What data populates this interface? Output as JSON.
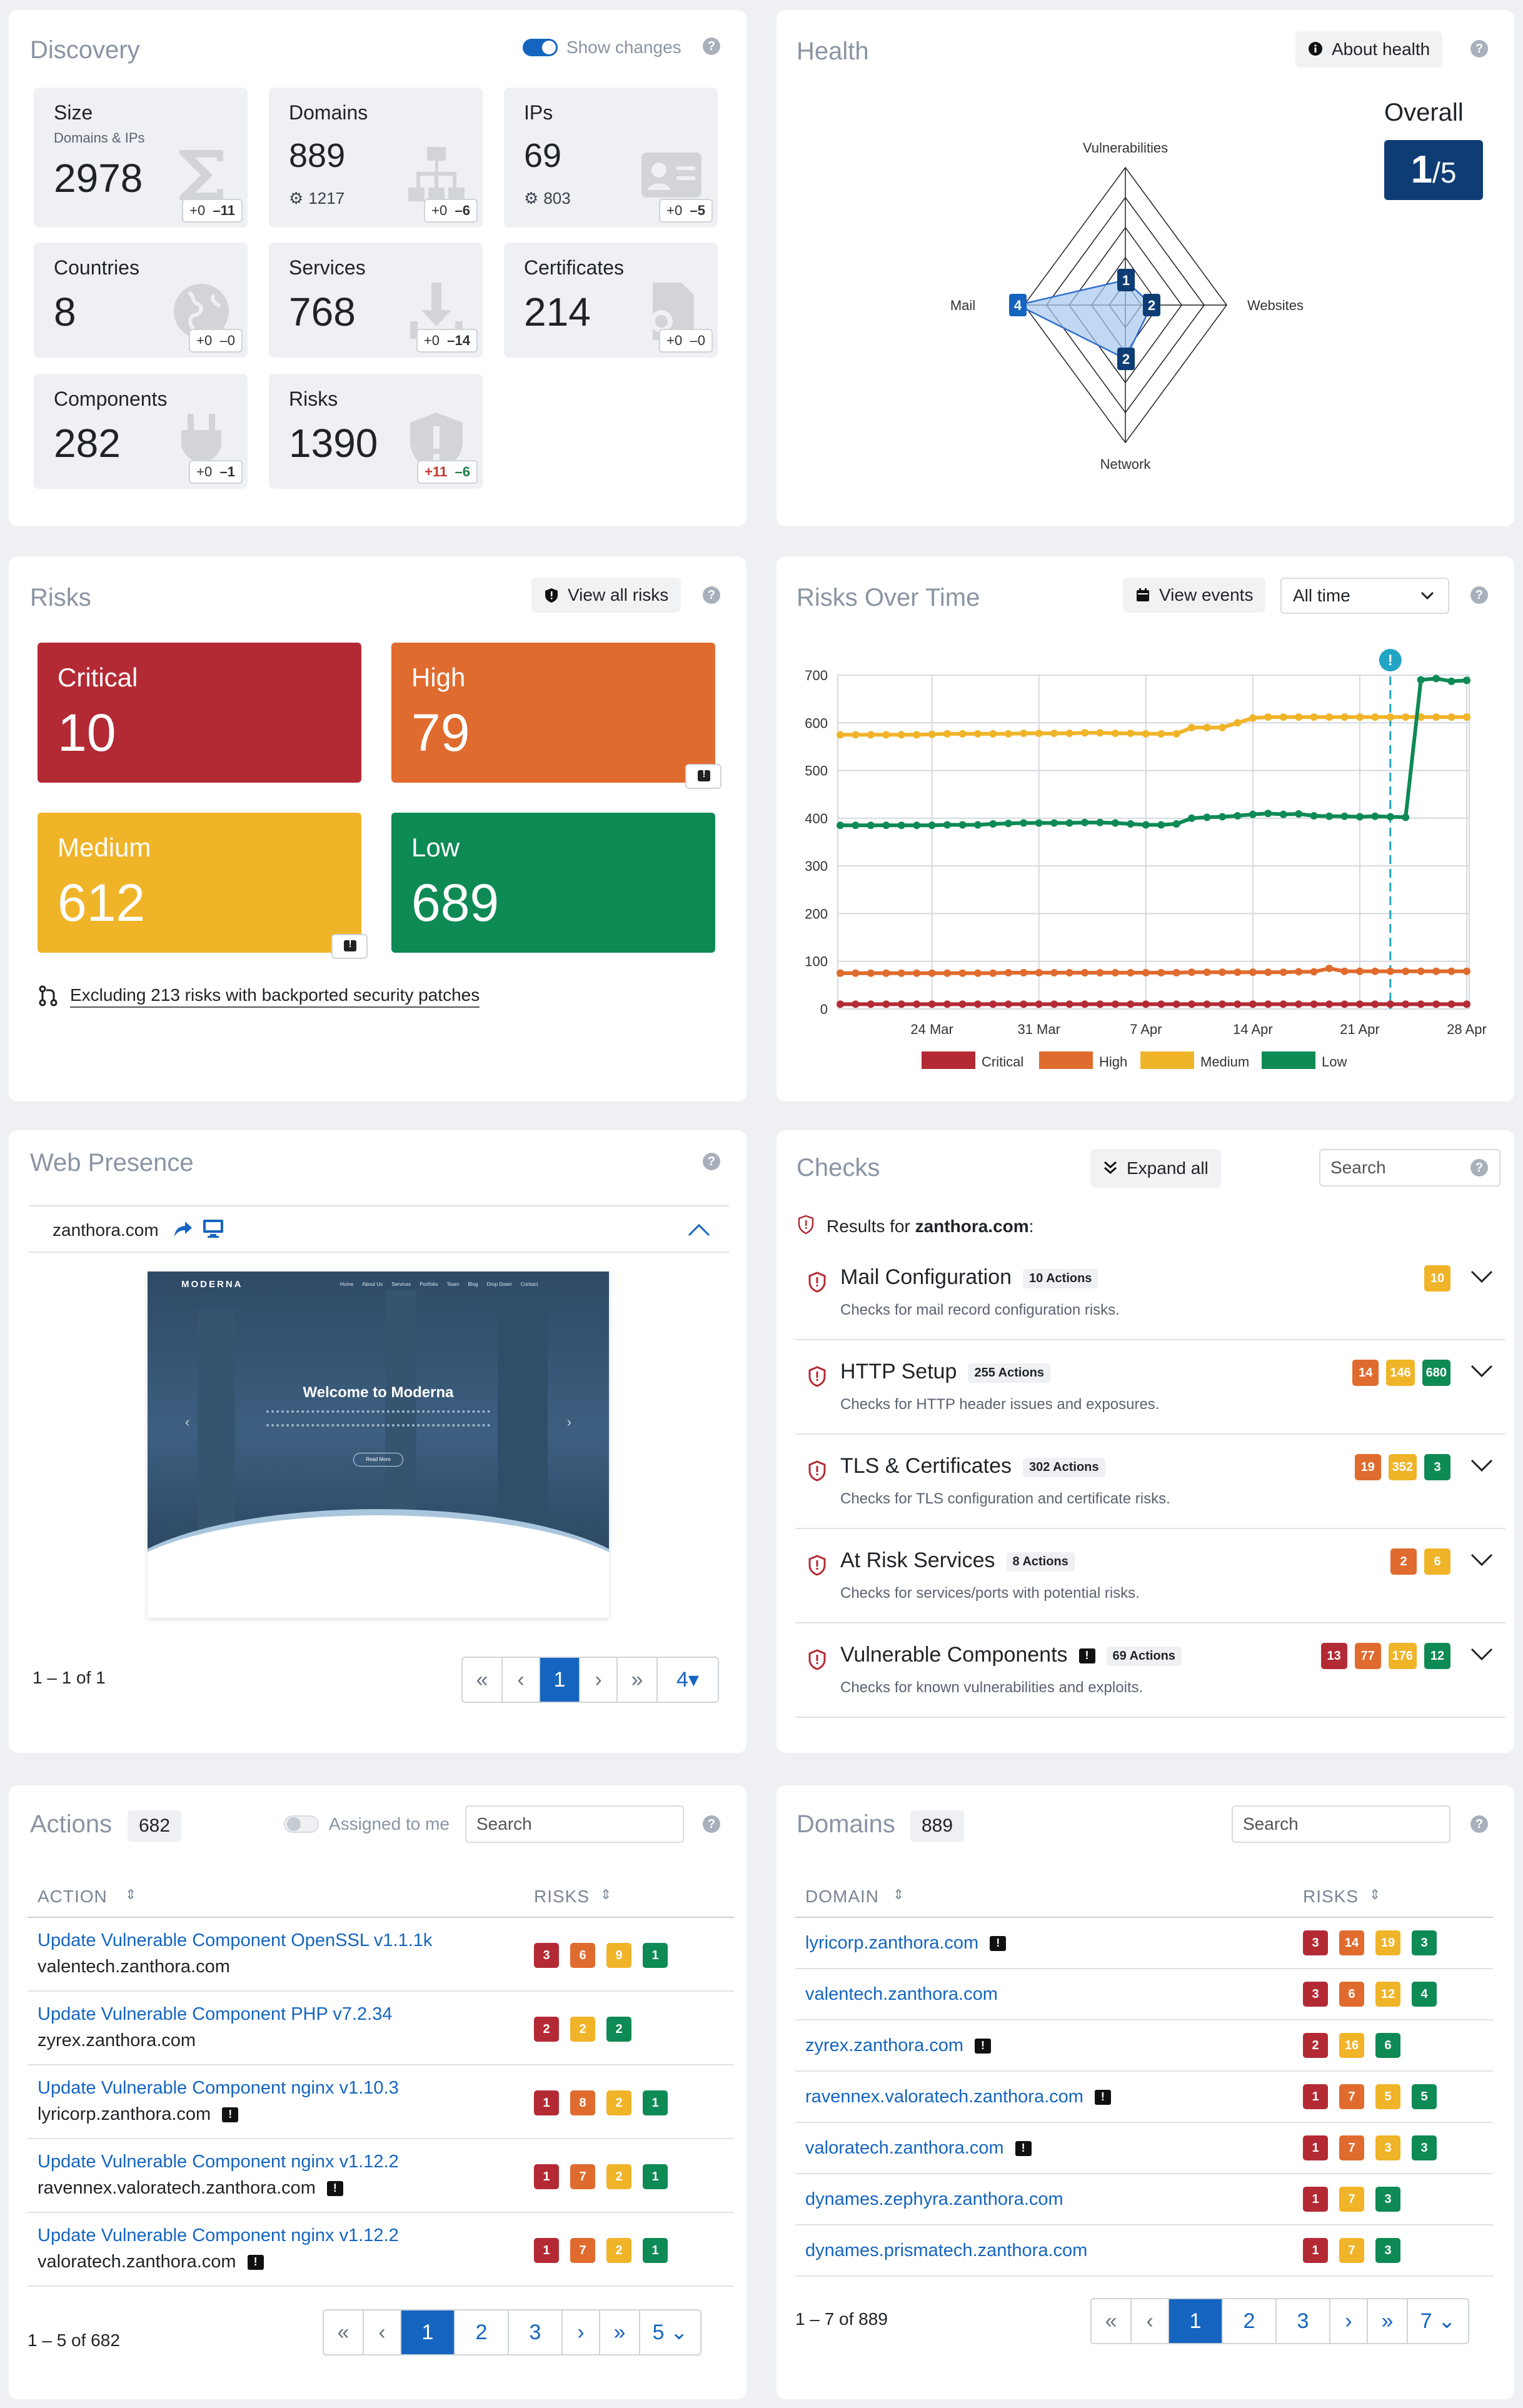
{
  "discovery": {
    "title": "Discovery",
    "show_changes": "Show changes",
    "tiles": [
      {
        "label": "Size",
        "sub": "Domains & IPs",
        "value": "2978",
        "plus": "0",
        "minus": "11"
      },
      {
        "label": "Domains",
        "value": "889",
        "extra": "1217",
        "plus": "0",
        "minus": "6"
      },
      {
        "label": "IPs",
        "value": "69",
        "extra": "803",
        "plus": "0",
        "minus": "5"
      },
      {
        "label": "Countries",
        "value": "8",
        "plus": "0",
        "minus": "0"
      },
      {
        "label": "Services",
        "value": "768",
        "plus": "0",
        "minus": "14"
      },
      {
        "label": "Certificates",
        "value": "214",
        "plus": "0",
        "minus": "0"
      },
      {
        "label": "Components",
        "value": "282",
        "plus": "0",
        "minus": "1"
      },
      {
        "label": "Risks",
        "value": "1390",
        "plus": "11",
        "minus": "6"
      }
    ]
  },
  "health": {
    "title": "Health",
    "about": "About health",
    "overall_label": "Overall",
    "score": "1",
    "max": "/5",
    "axes": [
      {
        "label": "Vulnerabilities",
        "value": "1"
      },
      {
        "label": "Websites",
        "value": "2"
      },
      {
        "label": "Network",
        "value": "2"
      },
      {
        "label": "Mail",
        "value": "4"
      }
    ]
  },
  "risks": {
    "title": "Risks",
    "view_all": "View all risks",
    "cards": [
      {
        "label": "Critical",
        "value": "10"
      },
      {
        "label": "High",
        "value": "79"
      },
      {
        "label": "Medium",
        "value": "612"
      },
      {
        "label": "Low",
        "value": "689"
      }
    ],
    "excluding": "Excluding 213 risks with backported security patches"
  },
  "risks_over_time": {
    "title": "Risks Over Time",
    "view_events": "View events",
    "range": "All time"
  },
  "chart_data": {
    "type": "line",
    "x": [
      "18 Mar",
      "19 Mar",
      "20 Mar",
      "21 Mar",
      "22 Mar",
      "23 Mar",
      "24 Mar",
      "25 Mar",
      "26 Mar",
      "27 Mar",
      "28 Mar",
      "29 Mar",
      "30 Mar",
      "31 Mar",
      "1 Apr",
      "2 Apr",
      "3 Apr",
      "4 Apr",
      "5 Apr",
      "6 Apr",
      "7 Apr",
      "8 Apr",
      "9 Apr",
      "10 Apr",
      "11 Apr",
      "12 Apr",
      "13 Apr",
      "14 Apr",
      "15 Apr",
      "16 Apr",
      "17 Apr",
      "18 Apr",
      "19 Apr",
      "20 Apr",
      "21 Apr",
      "22 Apr",
      "23 Apr",
      "24 Apr",
      "25 Apr",
      "26 Apr",
      "27 Apr",
      "28 Apr"
    ],
    "x_ticks": [
      "24 Mar",
      "31 Mar",
      "7 Apr",
      "14 Apr",
      "21 Apr",
      "28 Apr"
    ],
    "ylim": [
      0,
      700
    ],
    "y_ticks": [
      0,
      100,
      200,
      300,
      400,
      500,
      600,
      700
    ],
    "event_date": "23 Apr",
    "series": [
      {
        "name": "Critical",
        "color": "#b42a34",
        "values": [
          10,
          10,
          10,
          10,
          10,
          10,
          10,
          10,
          10,
          10,
          10,
          10,
          10,
          10,
          10,
          10,
          10,
          10,
          10,
          10,
          10,
          10,
          10,
          10,
          10,
          10,
          10,
          10,
          10,
          10,
          10,
          10,
          10,
          10,
          10,
          10,
          10,
          10,
          10,
          10,
          10,
          10
        ]
      },
      {
        "name": "High",
        "color": "#e06b2e",
        "values": [
          75,
          75,
          75,
          75,
          75,
          75,
          75,
          75,
          75,
          75,
          75,
          76,
          76,
          76,
          76,
          76,
          76,
          76,
          76,
          76,
          76,
          76,
          76,
          77,
          77,
          77,
          77,
          77,
          77,
          77,
          78,
          78,
          85,
          79,
          79,
          79,
          79,
          79,
          79,
          79,
          79,
          79
        ]
      },
      {
        "name": "Medium",
        "color": "#f0b429",
        "values": [
          575,
          575,
          575,
          575,
          575,
          575,
          576,
          577,
          577,
          577,
          577,
          577,
          578,
          578,
          578,
          578,
          579,
          579,
          578,
          578,
          577,
          577,
          577,
          590,
          590,
          590,
          600,
          610,
          612,
          612,
          612,
          612,
          612,
          612,
          612,
          612,
          612,
          612,
          612,
          612,
          612,
          612
        ]
      },
      {
        "name": "Low",
        "color": "#0e8a55",
        "values": [
          385,
          385,
          385,
          385,
          385,
          385,
          385,
          386,
          386,
          386,
          388,
          389,
          390,
          390,
          390,
          390,
          391,
          391,
          390,
          388,
          386,
          386,
          388,
          400,
          402,
          403,
          405,
          408,
          410,
          408,
          409,
          405,
          404,
          404,
          403,
          404,
          403,
          402,
          690,
          693,
          687,
          689
        ]
      }
    ]
  },
  "web_presence": {
    "title": "Web Presence",
    "domain": "zanthora.com",
    "preview_brand": "MODERNA",
    "preview_menu": [
      "Home",
      "About Us",
      "Services",
      "Portfolio",
      "Team",
      "Blog",
      "Drop Down",
      "Contact"
    ],
    "preview_heading": "Welcome to Moderna",
    "preview_button": "Read More",
    "paging": "1 – 1 of 1",
    "pages": [
      "«",
      "‹",
      "1",
      "›",
      "»",
      "4"
    ]
  },
  "checks": {
    "title": "Checks",
    "expand_all": "Expand all",
    "search_placeholder": "Search",
    "results_prefix": "Results for ",
    "results_domain": "zanthora.com",
    "results_suffix": ":",
    "items": [
      {
        "name": "Mail Configuration",
        "actions": "10 Actions",
        "desc": "Checks for mail record configuration risks.",
        "badges": [
          {
            "t": "m",
            "v": "10"
          }
        ]
      },
      {
        "name": "HTTP Setup",
        "actions": "255 Actions",
        "desc": "Checks for HTTP header issues and exposures.",
        "badges": [
          {
            "t": "h",
            "v": "14"
          },
          {
            "t": "m",
            "v": "146"
          },
          {
            "t": "l",
            "v": "680"
          }
        ]
      },
      {
        "name": "TLS & Certificates",
        "actions": "302 Actions",
        "desc": "Checks for TLS configuration and certificate risks.",
        "badges": [
          {
            "t": "h",
            "v": "19"
          },
          {
            "t": "m",
            "v": "352"
          },
          {
            "t": "l",
            "v": "3"
          }
        ]
      },
      {
        "name": "At Risk Services",
        "actions": "8 Actions",
        "desc": "Checks for services/ports with potential risks.",
        "badges": [
          {
            "t": "h",
            "v": "2"
          },
          {
            "t": "m",
            "v": "6"
          }
        ]
      },
      {
        "name": "Vulnerable Components",
        "actions": "69 Actions",
        "desc": "Checks for known vulnerabilities and exploits.",
        "badges": [
          {
            "t": "c",
            "v": "13"
          },
          {
            "t": "h",
            "v": "77"
          },
          {
            "t": "m",
            "v": "176"
          },
          {
            "t": "l",
            "v": "12"
          }
        ]
      }
    ]
  },
  "actions": {
    "title": "Actions",
    "count": "682",
    "assigned": "Assigned to me",
    "search_placeholder": "Search",
    "col_action": "ACTION",
    "col_risks": "RISKS",
    "rows": [
      {
        "title": "Update Vulnerable Component OpenSSL v1.1.1k",
        "domain": "valentech.zanthora.com",
        "note": false,
        "badges": [
          {
            "t": "c",
            "v": "3"
          },
          {
            "t": "h",
            "v": "6"
          },
          {
            "t": "m",
            "v": "9"
          },
          {
            "t": "l",
            "v": "1"
          }
        ]
      },
      {
        "title": "Update Vulnerable Component PHP v7.2.34",
        "domain": "zyrex.zanthora.com",
        "note": false,
        "badges": [
          {
            "t": "c",
            "v": "2"
          },
          {
            "t": "m",
            "v": "2"
          },
          {
            "t": "l",
            "v": "2"
          }
        ]
      },
      {
        "title": "Update Vulnerable Component nginx v1.10.3",
        "domain": "lyricorp.zanthora.com",
        "note": true,
        "badges": [
          {
            "t": "c",
            "v": "1"
          },
          {
            "t": "h",
            "v": "8"
          },
          {
            "t": "m",
            "v": "2"
          },
          {
            "t": "l",
            "v": "1"
          }
        ]
      },
      {
        "title": "Update Vulnerable Component nginx v1.12.2",
        "domain": "ravennex.valoratech.zanthora.com",
        "note": true,
        "badges": [
          {
            "t": "c",
            "v": "1"
          },
          {
            "t": "h",
            "v": "7"
          },
          {
            "t": "m",
            "v": "2"
          },
          {
            "t": "l",
            "v": "1"
          }
        ]
      },
      {
        "title": "Update Vulnerable Component nginx v1.12.2",
        "domain": "valoratech.zanthora.com",
        "note": true,
        "badges": [
          {
            "t": "c",
            "v": "1"
          },
          {
            "t": "h",
            "v": "7"
          },
          {
            "t": "m",
            "v": "2"
          },
          {
            "t": "l",
            "v": "1"
          }
        ]
      }
    ],
    "paging": "1 – 5 of 682",
    "pages": [
      "«",
      "‹",
      "1",
      "2",
      "3",
      "›",
      "»",
      "5"
    ]
  },
  "domains": {
    "title": "Domains",
    "count": "889",
    "search_placeholder": "Search",
    "col_domain": "DOMAIN",
    "col_risks": "RISKS",
    "rows": [
      {
        "domain": "lyricorp.zanthora.com",
        "note": true,
        "badges": [
          {
            "t": "c",
            "v": "3"
          },
          {
            "t": "h",
            "v": "14"
          },
          {
            "t": "m",
            "v": "19"
          },
          {
            "t": "l",
            "v": "3"
          }
        ]
      },
      {
        "domain": "valentech.zanthora.com",
        "note": false,
        "badges": [
          {
            "t": "c",
            "v": "3"
          },
          {
            "t": "h",
            "v": "6"
          },
          {
            "t": "m",
            "v": "12"
          },
          {
            "t": "l",
            "v": "4"
          }
        ]
      },
      {
        "domain": "zyrex.zanthora.com",
        "note": true,
        "badges": [
          {
            "t": "c",
            "v": "2"
          },
          {
            "t": "m",
            "v": "16"
          },
          {
            "t": "l",
            "v": "6"
          }
        ]
      },
      {
        "domain": "ravennex.valoratech.zanthora.com",
        "note": true,
        "badges": [
          {
            "t": "c",
            "v": "1"
          },
          {
            "t": "h",
            "v": "7"
          },
          {
            "t": "m",
            "v": "5"
          },
          {
            "t": "l",
            "v": "5"
          }
        ]
      },
      {
        "domain": "valoratech.zanthora.com",
        "note": true,
        "badges": [
          {
            "t": "c",
            "v": "1"
          },
          {
            "t": "h",
            "v": "7"
          },
          {
            "t": "m",
            "v": "3"
          },
          {
            "t": "l",
            "v": "3"
          }
        ]
      },
      {
        "domain": "dynames.zephyra.zanthora.com",
        "note": false,
        "badges": [
          {
            "t": "c",
            "v": "1"
          },
          {
            "t": "m",
            "v": "7"
          },
          {
            "t": "l",
            "v": "3"
          }
        ]
      },
      {
        "domain": "dynames.prismatech.zanthora.com",
        "note": false,
        "badges": [
          {
            "t": "c",
            "v": "1"
          },
          {
            "t": "m",
            "v": "7"
          },
          {
            "t": "l",
            "v": "3"
          }
        ]
      }
    ],
    "paging": "1 – 7 of 889",
    "pages": [
      "«",
      "‹",
      "1",
      "2",
      "3",
      "›",
      "»",
      "7"
    ]
  }
}
